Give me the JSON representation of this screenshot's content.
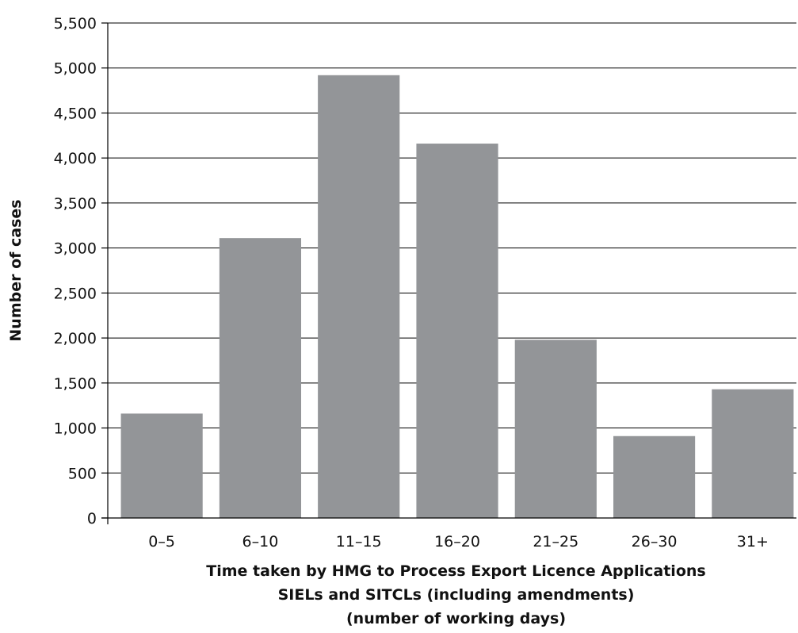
{
  "chart_data": {
    "type": "bar",
    "categories": [
      "0–5",
      "6–10",
      "11–15",
      "16–20",
      "21–25",
      "26–30",
      "31+"
    ],
    "values": [
      1160,
      3110,
      4920,
      4160,
      1980,
      910,
      1430
    ],
    "title": "",
    "xlabel_lines": [
      "Time taken by HMG to Process Export Licence Applications",
      "SIELs and SITCLs (including amendments)",
      "(number of working days)"
    ],
    "ylabel": "Number of cases",
    "ylim": [
      0,
      5500
    ],
    "yticks": [
      0,
      500,
      1000,
      1500,
      2000,
      2500,
      3000,
      3500,
      4000,
      4500,
      5000,
      5500
    ],
    "ytick_labels": [
      "0",
      "500",
      "1,000",
      "1,500",
      "2,000",
      "2,500",
      "3,000",
      "3,500",
      "4,000",
      "4,500",
      "5,000",
      "5,500"
    ],
    "grid": true,
    "bar_color": "#939598",
    "legend": null
  }
}
